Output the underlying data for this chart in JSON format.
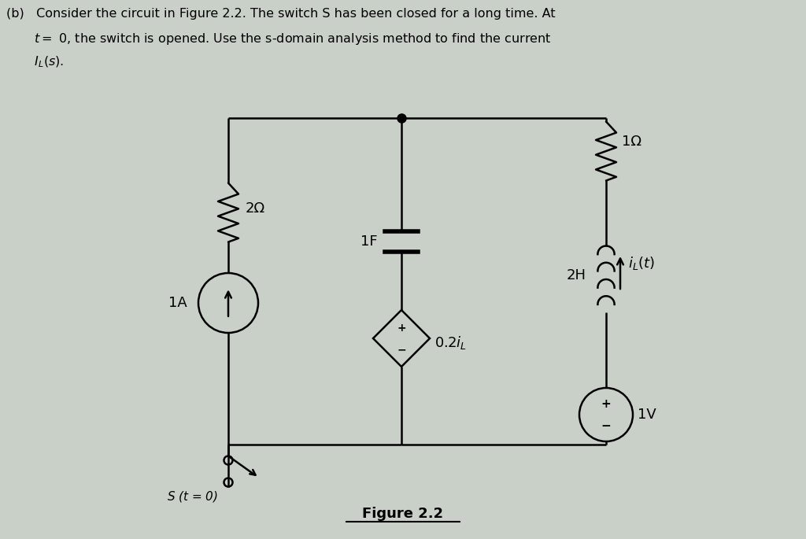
{
  "background_color": "#c8d0c8",
  "wire_color": "#000000",
  "resistor_2ohm_label": "2Ω",
  "resistor_1ohm_label": "1Ω",
  "inductor_label": "2H",
  "capacitor_label": "1F",
  "current_source_label": "1A",
  "voltage_source_label": "1V",
  "dep_source_label": "0.2$i_L$",
  "switch_label": "$S$ ($t$ = 0)",
  "il_label": "$i_L(t)$",
  "figure_label": "Figure 2.2",
  "header_line1": "(b)   Consider the circuit in Figure 2.2. The switch S has been closed for a long time. At",
  "header_line2": "       $t =$ 0, the switch is opened. Use the s-domain analysis method to find the current",
  "header_line3": "       $I_L(s)$."
}
